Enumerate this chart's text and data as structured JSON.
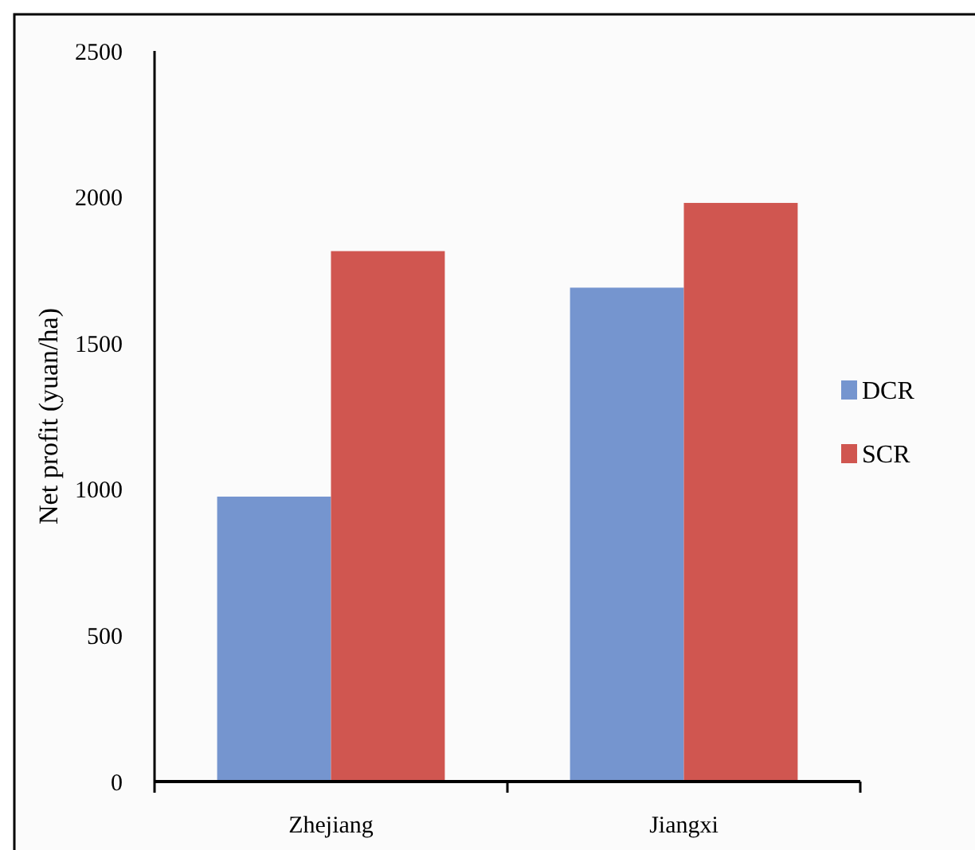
{
  "chart_data": {
    "type": "bar",
    "ylabel": "Net profit (yuan/ha)",
    "categories": [
      "Zhejiang",
      "Jiangxi"
    ],
    "series": [
      {
        "name": "DCR",
        "color": "#7595cf",
        "values": [
          975,
          1690
        ]
      },
      {
        "name": "SCR",
        "color": "#d05650",
        "values": [
          1815,
          1980
        ]
      }
    ],
    "ylim": [
      0,
      2500
    ],
    "yticks": [
      0,
      500,
      1000,
      1500,
      2000,
      2500
    ],
    "grid": false,
    "legend": "right"
  }
}
